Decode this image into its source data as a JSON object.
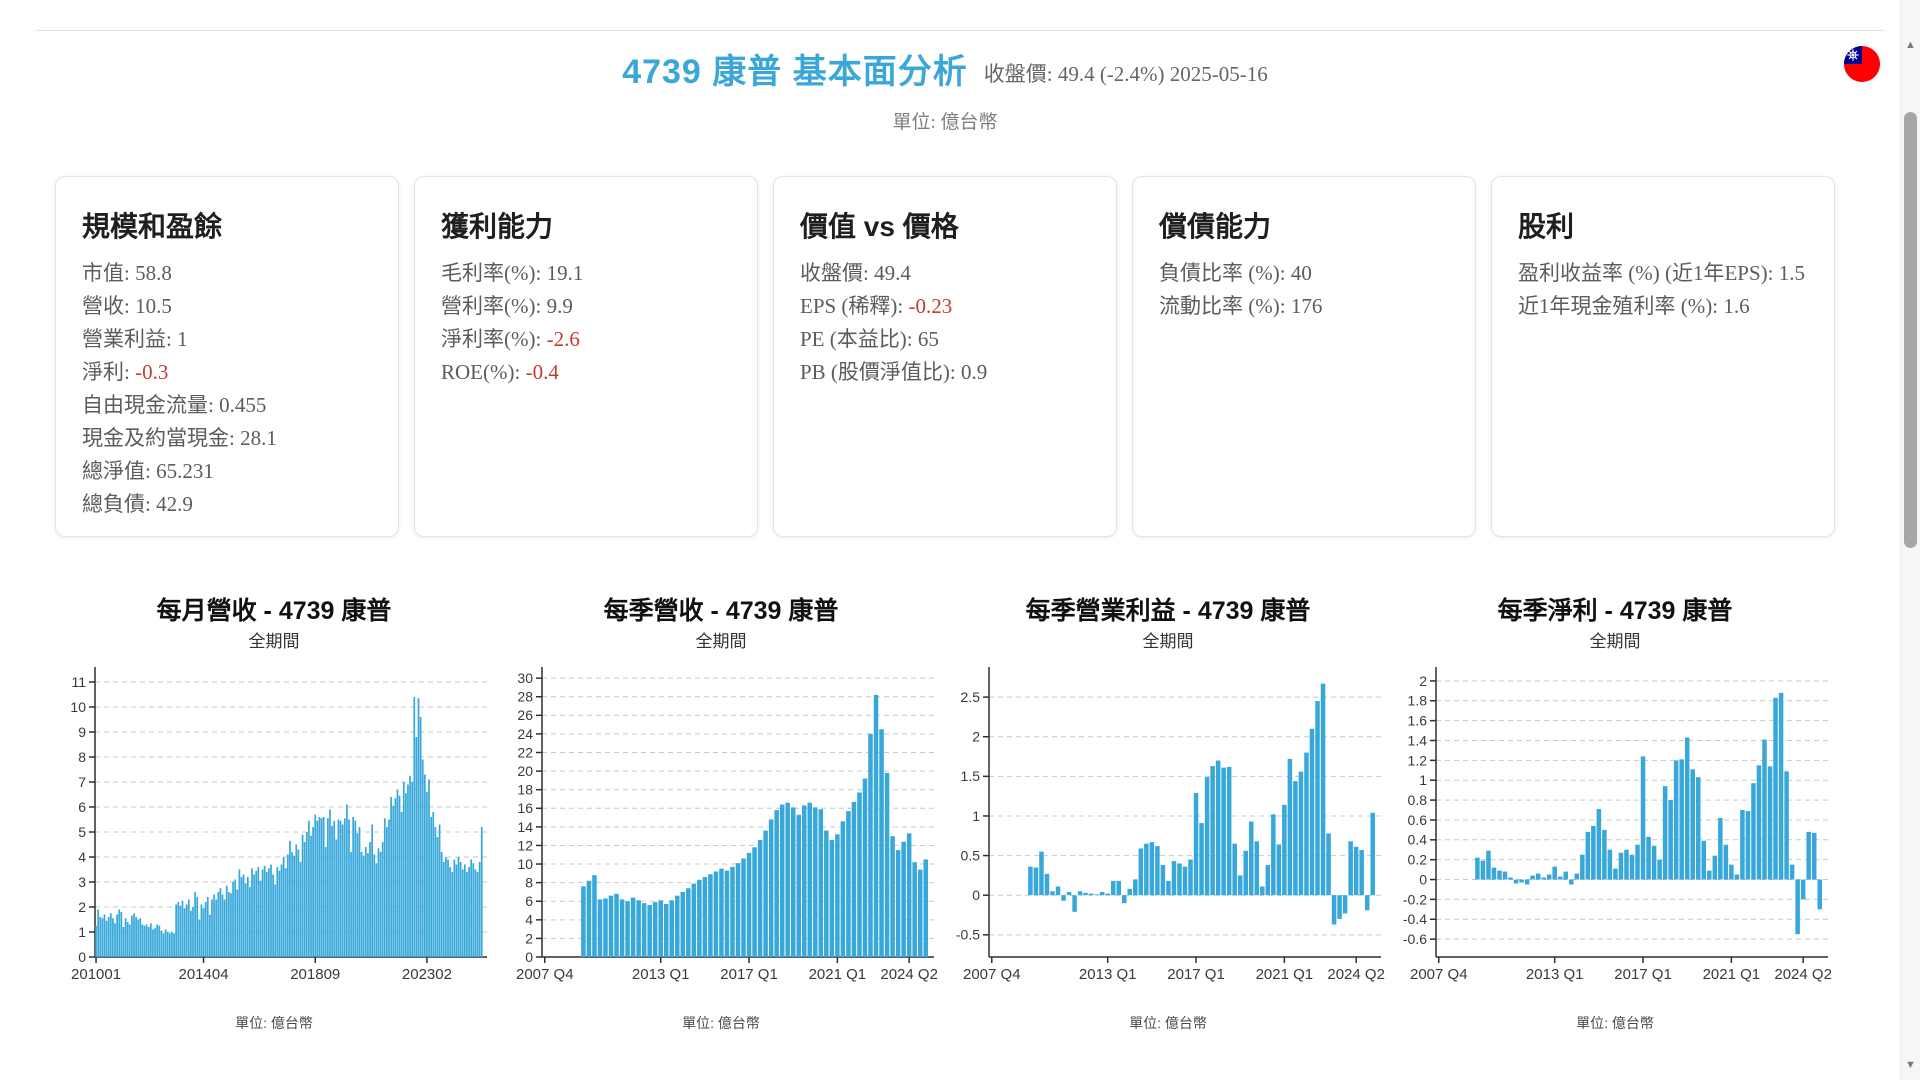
{
  "header": {
    "title": "4739 康普 基本面分析",
    "price_line": "收盤價: 49.4 (-2.4%) 2025-05-16",
    "unit_line": "單位: 億台幣"
  },
  "colors": {
    "accent_blue": "#3ba7d9",
    "bar_blue": "#38a8da",
    "negative_red": "#c43b31",
    "grid_gray": "#c9c9c9",
    "axis_dark": "#2f2f2f"
  },
  "flag_icon": "taiwan-flag",
  "cards": [
    {
      "title": "規模和盈餘",
      "items": [
        {
          "label": "市值",
          "value": "58.8"
        },
        {
          "label": "營收",
          "value": "10.5"
        },
        {
          "label": "營業利益",
          "value": "1"
        },
        {
          "label": "淨利",
          "value": "-0.3"
        },
        {
          "label": "自由現金流量",
          "value": "0.455"
        },
        {
          "label": "現金及約當現金",
          "value": "28.1"
        },
        {
          "label": "總淨值",
          "value": "65.231"
        },
        {
          "label": "總負債",
          "value": "42.9"
        }
      ]
    },
    {
      "title": "獲利能力",
      "items": [
        {
          "label": "毛利率(%)",
          "value": "19.1"
        },
        {
          "label": "營利率(%)",
          "value": "9.9"
        },
        {
          "label": "淨利率(%)",
          "value": "-2.6"
        },
        {
          "label": "ROE(%)",
          "value": "-0.4"
        }
      ]
    },
    {
      "title": "價值 vs 價格",
      "items": [
        {
          "label": "收盤價",
          "value": "49.4"
        },
        {
          "label": "EPS (稀釋)",
          "value": "-0.23"
        },
        {
          "label": "PE (本益比)",
          "value": "65"
        },
        {
          "label": "PB (股價淨值比)",
          "value": "0.9"
        }
      ]
    },
    {
      "title": "償債能力",
      "items": [
        {
          "label": "負債比率 (%)",
          "value": "40"
        },
        {
          "label": "流動比率 (%)",
          "value": "176"
        }
      ]
    },
    {
      "title": "股利",
      "items": [
        {
          "label": "盈利收益率 (%) (近1年EPS)",
          "value": "1.5"
        },
        {
          "label": "近1年現金殖利率 (%)",
          "value": "1.6"
        }
      ]
    }
  ],
  "chart_data": [
    {
      "type": "bar",
      "title": "每月營收 - 4739 康普",
      "subtitle": "全期間",
      "unit_label": "單位: 億台幣",
      "ylabel": "",
      "xlabel": "",
      "ylim": [
        0,
        11.6
      ],
      "yticks": [
        0,
        1,
        2,
        3,
        4,
        5,
        6,
        7,
        8,
        9,
        10,
        11
      ],
      "total_slots": 186,
      "bars_start_slot": 0,
      "x_ticks": [
        {
          "label": "201001",
          "slot": 0
        },
        {
          "label": "201404",
          "slot": 51
        },
        {
          "label": "201809",
          "slot": 104
        },
        {
          "label": "202302",
          "slot": 157
        }
      ],
      "values": [
        1.25,
        1.9,
        1.6,
        1.55,
        1.7,
        1.45,
        1.6,
        1.75,
        1.55,
        1.35,
        1.7,
        1.9,
        1.8,
        1.2,
        1.55,
        1.4,
        1.3,
        1.65,
        1.75,
        1.6,
        1.5,
        1.55,
        1.3,
        1.25,
        1.3,
        1.2,
        1.35,
        1.1,
        1.15,
        1.3,
        1.25,
        1.05,
        0.95,
        1.1,
        1.0,
        0.95,
        1.0,
        0.95,
        2.1,
        2.2,
        2.05,
        2.25,
        1.95,
        2.1,
        2.3,
        1.85,
        2.0,
        2.6,
        2.4,
        1.5,
        2.1,
        1.95,
        2.2,
        2.4,
        1.7,
        2.3,
        2.5,
        2.3,
        2.6,
        2.75,
        2.5,
        2.3,
        2.85,
        2.6,
        2.55,
        3.0,
        3.1,
        2.7,
        3.5,
        3.2,
        3.3,
        2.95,
        3.2,
        2.8,
        3.55,
        3.3,
        3.45,
        3.6,
        3.05,
        3.5,
        3.65,
        3.4,
        3.55,
        3.7,
        3.3,
        2.9,
        3.6,
        3.45,
        3.7,
        4.0,
        3.55,
        4.1,
        4.65,
        4.2,
        4.05,
        4.5,
        4.3,
        3.8,
        4.9,
        4.6,
        5.0,
        5.45,
        4.85,
        5.2,
        5.7,
        5.45,
        5.6,
        5.55,
        5.6,
        4.4,
        5.55,
        5.9,
        5.25,
        5.45,
        4.7,
        5.5,
        5.45,
        5.3,
        5.55,
        6.1,
        5.5,
        4.2,
        5.6,
        5.45,
        4.95,
        5.2,
        4.2,
        4.05,
        4.4,
        4.15,
        4.6,
        5.3,
        4.1,
        3.75,
        4.35,
        4.2,
        4.6,
        5.55,
        5.2,
        5.5,
        6.4,
        6.05,
        6.35,
        6.7,
        6.45,
        5.8,
        7.0,
        6.55,
        6.9,
        7.25,
        7.0,
        10.4,
        8.8,
        10.35,
        9.6,
        7.9,
        7.3,
        6.6,
        7.1,
        5.6,
        5.8,
        5.2,
        4.8,
        5.3,
        4.2,
        3.8,
        4.0,
        3.9,
        3.6,
        3.4,
        3.9,
        3.7,
        4.0,
        3.8,
        3.5,
        3.7,
        3.4,
        3.6,
        3.9,
        3.75,
        3.5,
        3.4,
        3.8,
        5.2
      ]
    },
    {
      "type": "bar",
      "title": "每季營收 - 4739 康普",
      "subtitle": "全期間",
      "unit_label": "單位: 億台幣",
      "ylabel": "",
      "xlabel": "",
      "ylim": [
        0,
        31.2
      ],
      "yticks": [
        0,
        2,
        4,
        6,
        8,
        10,
        12,
        14,
        16,
        18,
        20,
        22,
        24,
        26,
        28,
        30
      ],
      "total_slots": 71,
      "bars_start_slot": 7,
      "x_ticks": [
        {
          "label": "2007 Q4",
          "slot": 0
        },
        {
          "label": "2013 Q1",
          "slot": 21
        },
        {
          "label": "2017 Q1",
          "slot": 37
        },
        {
          "label": "2021 Q1",
          "slot": 53
        },
        {
          "label": "2024 Q2",
          "slot": 66
        }
      ],
      "values": [
        7.6,
        8.2,
        8.8,
        6.2,
        6.3,
        6.6,
        6.8,
        6.2,
        6.0,
        6.4,
        6.1,
        5.8,
        5.6,
        5.9,
        6.1,
        5.7,
        6.1,
        6.6,
        7.0,
        7.4,
        7.9,
        8.3,
        8.6,
        8.9,
        9.2,
        9.5,
        9.3,
        9.7,
        10.1,
        10.6,
        11.2,
        11.8,
        12.6,
        13.6,
        14.8,
        15.8,
        16.4,
        16.6,
        16.1,
        15.3,
        16.3,
        16.6,
        16.1,
        15.9,
        13.6,
        12.6,
        13.2,
        14.6,
        15.7,
        16.7,
        17.7,
        19.2,
        24.0,
        28.2,
        24.5,
        19.8,
        13.0,
        11.5,
        12.4,
        13.3,
        10.2,
        9.4,
        10.5
      ]
    },
    {
      "type": "bar",
      "title": "每季營業利益 - 4739 康普",
      "subtitle": "全期間",
      "unit_label": "單位: 億台幣",
      "ylabel": "",
      "xlabel": "",
      "ylim": [
        -0.78,
        2.88
      ],
      "yticks": [
        -0.5,
        0,
        0.5,
        1,
        1.5,
        2,
        2.5
      ],
      "total_slots": 71,
      "bars_start_slot": 7,
      "x_ticks": [
        {
          "label": "2007 Q4",
          "slot": 0
        },
        {
          "label": "2013 Q1",
          "slot": 21
        },
        {
          "label": "2017 Q1",
          "slot": 37
        },
        {
          "label": "2021 Q1",
          "slot": 53
        },
        {
          "label": "2024 Q2",
          "slot": 66
        }
      ],
      "values": [
        0.36,
        0.35,
        0.55,
        0.27,
        0.05,
        0.11,
        -0.07,
        0.04,
        -0.21,
        0.05,
        0.03,
        0.02,
        0.01,
        0.04,
        0.02,
        0.18,
        0.18,
        -0.1,
        0.08,
        0.2,
        0.59,
        0.65,
        0.67,
        0.62,
        0.38,
        0.18,
        0.43,
        0.4,
        0.36,
        0.45,
        1.29,
        0.91,
        1.49,
        1.63,
        1.7,
        1.61,
        1.62,
        0.65,
        0.25,
        0.56,
        0.93,
        0.68,
        0.11,
        0.38,
        1.02,
        0.64,
        1.14,
        1.72,
        1.44,
        1.56,
        1.8,
        2.1,
        2.45,
        2.67,
        0.78,
        -0.37,
        -0.3,
        -0.23,
        0.68,
        0.61,
        0.57,
        -0.19,
        1.04
      ]
    },
    {
      "type": "bar",
      "title": "每季淨利 - 4739 康普",
      "subtitle": "全期間",
      "unit_label": "單位: 億台幣",
      "ylabel": "",
      "xlabel": "",
      "ylim": [
        -0.78,
        2.14
      ],
      "yticks": [
        -0.6,
        -0.4,
        -0.2,
        0,
        0.2,
        0.4,
        0.6,
        0.8,
        1,
        1.2,
        1.4,
        1.6,
        1.8,
        2
      ],
      "total_slots": 71,
      "bars_start_slot": 7,
      "x_ticks": [
        {
          "label": "2007 Q4",
          "slot": 0
        },
        {
          "label": "2013 Q1",
          "slot": 21
        },
        {
          "label": "2017 Q1",
          "slot": 37
        },
        {
          "label": "2021 Q1",
          "slot": 53
        },
        {
          "label": "2024 Q2",
          "slot": 66
        }
      ],
      "values": [
        0.22,
        0.19,
        0.29,
        0.12,
        0.09,
        0.08,
        0.02,
        -0.04,
        -0.03,
        -0.05,
        0.04,
        0.06,
        0.02,
        0.05,
        0.13,
        0.03,
        0.08,
        -0.05,
        0.06,
        0.25,
        0.48,
        0.54,
        0.71,
        0.5,
        0.3,
        0.11,
        0.27,
        0.3,
        0.25,
        0.35,
        1.24,
        0.43,
        0.34,
        0.2,
        0.94,
        0.8,
        1.2,
        1.21,
        1.43,
        1.11,
        1.03,
        0.39,
        0.09,
        0.24,
        0.62,
        0.35,
        0.15,
        0.05,
        0.7,
        0.69,
        0.97,
        1.15,
        1.41,
        1.14,
        1.83,
        1.88,
        1.09,
        0.15,
        -0.55,
        -0.2,
        0.48,
        0.47,
        -0.3
      ]
    }
  ],
  "scrollbar": {
    "up_arrow": "▲",
    "down_arrow": "▼"
  }
}
